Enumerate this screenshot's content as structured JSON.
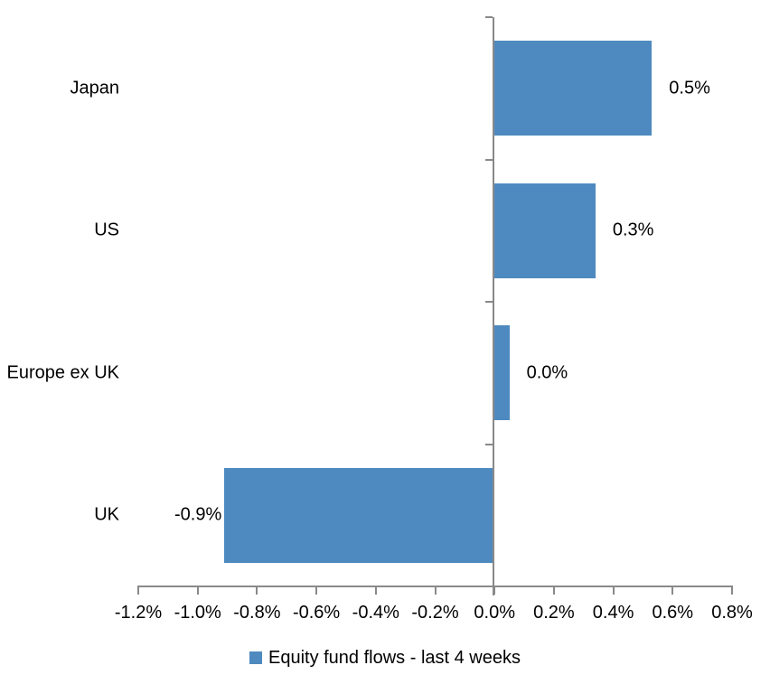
{
  "chart_data": {
    "type": "bar",
    "orientation": "horizontal",
    "title": "",
    "categories": [
      "Japan",
      "US",
      "Europe ex UK",
      "UK"
    ],
    "values": [
      0.53,
      0.34,
      0.05,
      -0.91
    ],
    "value_labels": [
      "0.5%",
      "0.3%",
      "0.0%",
      "-0.9%"
    ],
    "xlim": [
      -1.2,
      0.8
    ],
    "x_tick_values": [
      -1.2,
      -1.0,
      -0.8,
      -0.6,
      -0.4,
      -0.2,
      0.0,
      0.2,
      0.4,
      0.6,
      0.8
    ],
    "x_tick_labels": [
      "-1.2%",
      "-1.0%",
      "-0.8%",
      "-0.6%",
      "-0.4%",
      "-0.2%",
      "0.0%",
      "0.2%",
      "0.4%",
      "0.6%",
      "0.8%"
    ],
    "grid": false,
    "legend_position": "bottom",
    "legend": [
      {
        "label": "Equity fund flows - last 4 weeks",
        "color": "#4E8AC0"
      }
    ],
    "bar_color": "#4E8AC0",
    "axis_color": "#898989",
    "text_color": "#000000"
  }
}
